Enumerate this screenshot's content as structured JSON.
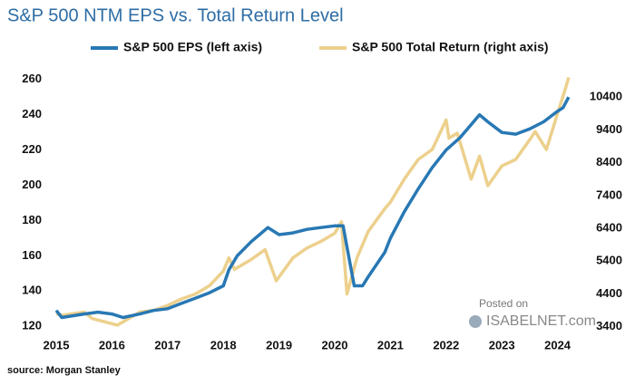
{
  "chart_data": {
    "type": "line",
    "title": "S&P 500 NTM EPS vs. Total Return Level",
    "source": "source: Morgan Stanley",
    "watermark": [
      "Posted on",
      "ISABELNET.com"
    ],
    "legend": "top",
    "xlim": [
      2015,
      2024.3
    ],
    "xticks": [
      2015,
      2016,
      2017,
      2018,
      2019,
      2020,
      2021,
      2022,
      2023,
      2024
    ],
    "ylim": [
      116,
      264
    ],
    "yticks": [
      120,
      140,
      160,
      180,
      200,
      220,
      240,
      260
    ],
    "y2lim": [
      3200,
      11150
    ],
    "y2ticks": [
      3400,
      4400,
      5400,
      6400,
      7400,
      8400,
      9400,
      10400
    ],
    "series": [
      {
        "name": "S&P 500 EPS (left axis)",
        "color": "#2878b4",
        "axis": "y",
        "x": [
          2015.0,
          2015.1,
          2015.5,
          2015.75,
          2016.0,
          2016.2,
          2016.5,
          2016.75,
          2017.0,
          2017.25,
          2017.5,
          2017.75,
          2018.0,
          2018.1,
          2018.25,
          2018.5,
          2018.8,
          2019.0,
          2019.25,
          2019.5,
          2019.75,
          2020.0,
          2020.15,
          2020.25,
          2020.35,
          2020.5,
          2020.6,
          2020.75,
          2020.9,
          2021.0,
          2021.25,
          2021.5,
          2021.75,
          2022.0,
          2022.25,
          2022.6,
          2022.75,
          2023.0,
          2023.25,
          2023.5,
          2023.75,
          2024.0,
          2024.1,
          2024.2
        ],
        "values": [
          129,
          125,
          127,
          128,
          127,
          125,
          127,
          129,
          130,
          133,
          136,
          139,
          143,
          152,
          160,
          168,
          176,
          172,
          173,
          175,
          176,
          177,
          177,
          160,
          143,
          143,
          148,
          155,
          162,
          170,
          185,
          198,
          210,
          220,
          227,
          240,
          236,
          230,
          229,
          232,
          236,
          242,
          244,
          250
        ]
      },
      {
        "name": "S&P 500 Total Return (right axis)",
        "color": "#ecd08c",
        "axis": "y2",
        "x": [
          2015.0,
          2015.1,
          2015.5,
          2015.65,
          2016.1,
          2016.5,
          2016.75,
          2017.0,
          2017.25,
          2017.5,
          2017.75,
          2018.0,
          2018.1,
          2018.2,
          2018.5,
          2018.75,
          2018.95,
          2019.25,
          2019.5,
          2019.75,
          2020.0,
          2020.12,
          2020.22,
          2020.4,
          2020.6,
          2020.9,
          2021.0,
          2021.25,
          2021.5,
          2021.75,
          2022.0,
          2022.05,
          2022.2,
          2022.45,
          2022.6,
          2022.75,
          2023.0,
          2023.25,
          2023.5,
          2023.6,
          2023.8,
          2024.0,
          2024.15,
          2024.2
        ],
        "values": [
          3800,
          3750,
          3850,
          3650,
          3450,
          3850,
          3900,
          4050,
          4250,
          4400,
          4650,
          5100,
          5500,
          5150,
          5450,
          5750,
          4800,
          5500,
          5800,
          6000,
          6250,
          6600,
          4400,
          5500,
          6300,
          7000,
          7200,
          7900,
          8500,
          8800,
          9700,
          9150,
          9300,
          7900,
          8600,
          7700,
          8300,
          8500,
          9100,
          9350,
          8800,
          9900,
          10700,
          11000
        ]
      }
    ]
  }
}
